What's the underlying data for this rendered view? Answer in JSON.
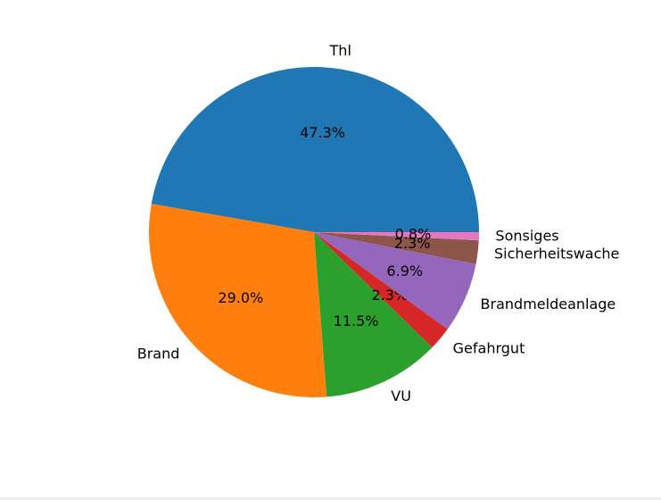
{
  "chart_data": {
    "type": "pie",
    "title": "",
    "slices": [
      {
        "label": "Thl",
        "value": 47.3,
        "pct_label": "47.3%",
        "color": "#1f77b4"
      },
      {
        "label": "Brand",
        "value": 29.0,
        "pct_label": "29.0%",
        "color": "#ff7f0e"
      },
      {
        "label": "VU",
        "value": 11.5,
        "pct_label": "11.5%",
        "color": "#2ca02c"
      },
      {
        "label": "Gefahrgut",
        "value": 2.3,
        "pct_label": "2.3%",
        "color": "#d62728"
      },
      {
        "label": "Brandmeldeanlage",
        "value": 6.9,
        "pct_label": "6.9%",
        "color": "#9467bd"
      },
      {
        "label": "Sicherheitswache",
        "value": 2.3,
        "pct_label": "2.3%",
        "color": "#8c564b"
      },
      {
        "label": "Sonsiges",
        "value": 0.8,
        "pct_label": "0.8%",
        "color": "#e377c2"
      }
    ],
    "start_angle_deg": 0,
    "direction": "counterclockwise"
  }
}
